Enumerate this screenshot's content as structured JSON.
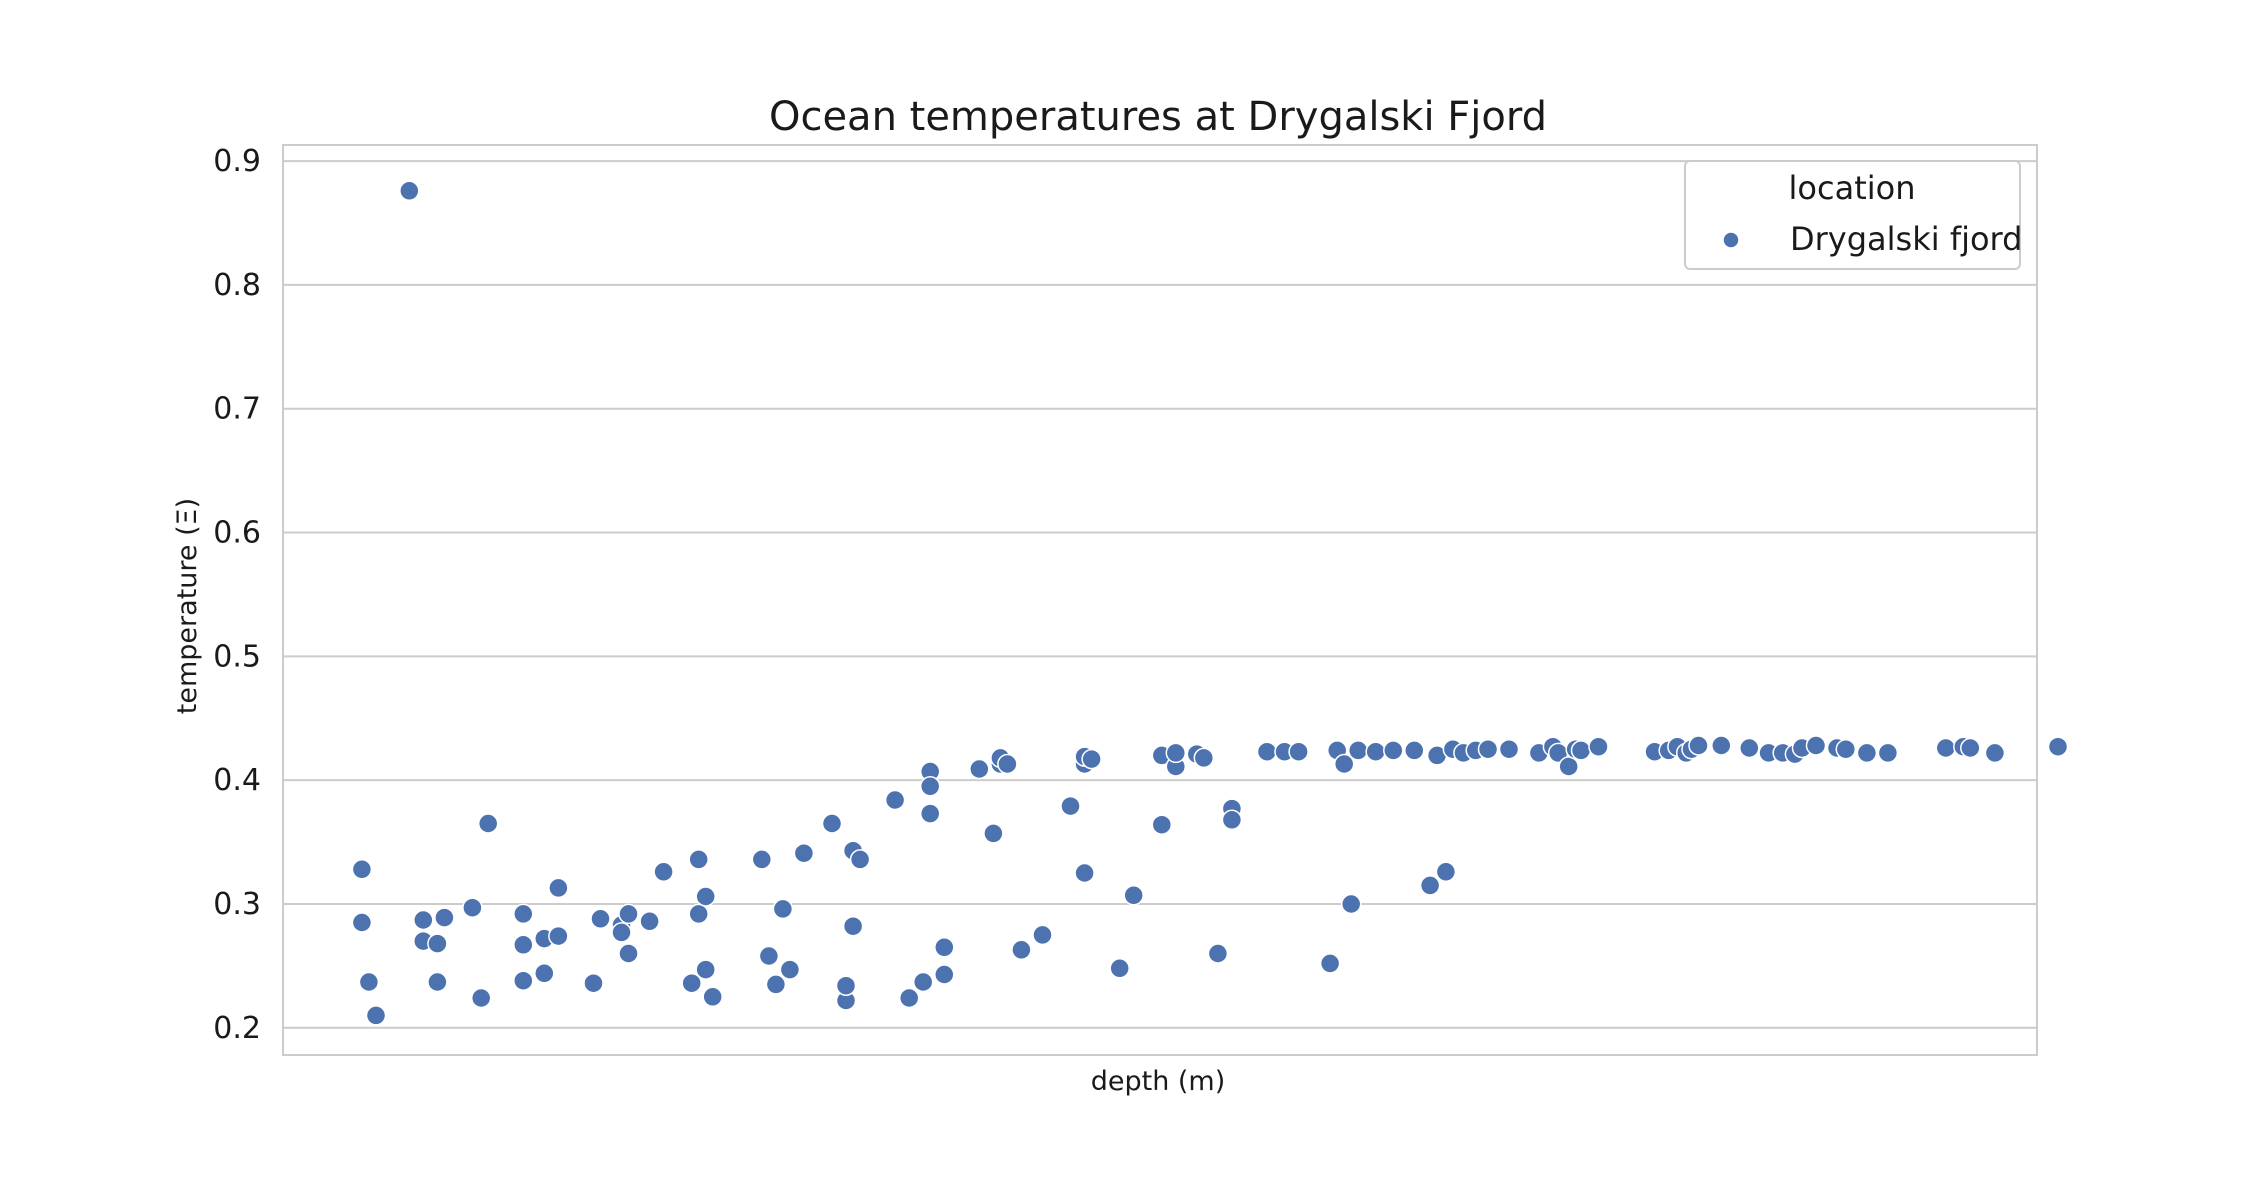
{
  "chart_data": {
    "type": "scatter",
    "title": "Ocean temperatures at Drygalski Fjord",
    "xlabel": "depth (m)",
    "ylabel": "temperature (Ξ)",
    "xlim": [
      0,
      1000
    ],
    "ylim": [
      0.178,
      0.913
    ],
    "yticks": [
      "0.2",
      "0.3",
      "0.4",
      "0.5",
      "0.6",
      "0.7",
      "0.8",
      "0.9"
    ],
    "xticks_visible": false,
    "grid": true,
    "legend": {
      "title": "location",
      "placement": "top-right"
    },
    "series": [
      {
        "name": "Drygalski fjord",
        "color": "#4c72b0",
        "points": [
          [
            45,
            0.328
          ],
          [
            45,
            0.285
          ],
          [
            49,
            0.237
          ],
          [
            53,
            0.21
          ],
          [
            72,
            0.876
          ],
          [
            80,
            0.287
          ],
          [
            80,
            0.27
          ],
          [
            88,
            0.268
          ],
          [
            88,
            0.237
          ],
          [
            92,
            0.289
          ],
          [
            108,
            0.297
          ],
          [
            113,
            0.224
          ],
          [
            117,
            0.365
          ],
          [
            137,
            0.292
          ],
          [
            137,
            0.267
          ],
          [
            137,
            0.238
          ],
          [
            149,
            0.272
          ],
          [
            149,
            0.244
          ],
          [
            157,
            0.313
          ],
          [
            157,
            0.274
          ],
          [
            177,
            0.236
          ],
          [
            181,
            0.288
          ],
          [
            193,
            0.283
          ],
          [
            193,
            0.277
          ],
          [
            197,
            0.292
          ],
          [
            197,
            0.26
          ],
          [
            209,
            0.286
          ],
          [
            217,
            0.326
          ],
          [
            233,
            0.236
          ],
          [
            237,
            0.336
          ],
          [
            237,
            0.292
          ],
          [
            241,
            0.306
          ],
          [
            241,
            0.247
          ],
          [
            245,
            0.225
          ],
          [
            273,
            0.336
          ],
          [
            277,
            0.258
          ],
          [
            281,
            0.235
          ],
          [
            285,
            0.296
          ],
          [
            289,
            0.247
          ],
          [
            297,
            0.341
          ],
          [
            313,
            0.365
          ],
          [
            321,
            0.222
          ],
          [
            321,
            0.234
          ],
          [
            325,
            0.343
          ],
          [
            325,
            0.282
          ],
          [
            329,
            0.336
          ],
          [
            349,
            0.384
          ],
          [
            357,
            0.224
          ],
          [
            365,
            0.237
          ],
          [
            369,
            0.407
          ],
          [
            369,
            0.395
          ],
          [
            369,
            0.373
          ],
          [
            377,
            0.265
          ],
          [
            377,
            0.243
          ],
          [
            397,
            0.409
          ],
          [
            405,
            0.357
          ],
          [
            409,
            0.413
          ],
          [
            409,
            0.418
          ],
          [
            413,
            0.413
          ],
          [
            421,
            0.263
          ],
          [
            433,
            0.275
          ],
          [
            449,
            0.379
          ],
          [
            457,
            0.413
          ],
          [
            457,
            0.419
          ],
          [
            457,
            0.325
          ],
          [
            461,
            0.417
          ],
          [
            477,
            0.248
          ],
          [
            485,
            0.307
          ],
          [
            501,
            0.42
          ],
          [
            501,
            0.364
          ],
          [
            509,
            0.411
          ],
          [
            509,
            0.422
          ],
          [
            521,
            0.421
          ],
          [
            525,
            0.418
          ],
          [
            533,
            0.26
          ],
          [
            541,
            0.377
          ],
          [
            541,
            0.368
          ],
          [
            561,
            0.422
          ],
          [
            561,
            0.423
          ],
          [
            571,
            0.423
          ],
          [
            579,
            0.423
          ],
          [
            597,
            0.252
          ],
          [
            601,
            0.424
          ],
          [
            605,
            0.413
          ],
          [
            609,
            0.3
          ],
          [
            613,
            0.424
          ],
          [
            623,
            0.423
          ],
          [
            633,
            0.424
          ],
          [
            645,
            0.424
          ],
          [
            654,
            0.315
          ],
          [
            658,
            0.42
          ],
          [
            663,
            0.326
          ],
          [
            667,
            0.425
          ],
          [
            673,
            0.422
          ],
          [
            680,
            0.424
          ],
          [
            687,
            0.425
          ],
          [
            699,
            0.425
          ],
          [
            716,
            0.422
          ],
          [
            724,
            0.427
          ],
          [
            727,
            0.422
          ],
          [
            733,
            0.411
          ],
          [
            737,
            0.425
          ],
          [
            740,
            0.424
          ],
          [
            750,
            0.427
          ],
          [
            782,
            0.423
          ],
          [
            790,
            0.424
          ],
          [
            795,
            0.427
          ],
          [
            800,
            0.422
          ],
          [
            803,
            0.425
          ],
          [
            807,
            0.428
          ],
          [
            820,
            0.428
          ],
          [
            836,
            0.426
          ],
          [
            847,
            0.422
          ],
          [
            855,
            0.422
          ],
          [
            862,
            0.421
          ],
          [
            866,
            0.426
          ],
          [
            874,
            0.428
          ],
          [
            886,
            0.426
          ],
          [
            891,
            0.425
          ],
          [
            903,
            0.422
          ],
          [
            915,
            0.422
          ],
          [
            948,
            0.426
          ],
          [
            958,
            0.427
          ],
          [
            962,
            0.426
          ],
          [
            976,
            0.422
          ],
          [
            1012,
            0.427
          ]
        ]
      }
    ]
  }
}
